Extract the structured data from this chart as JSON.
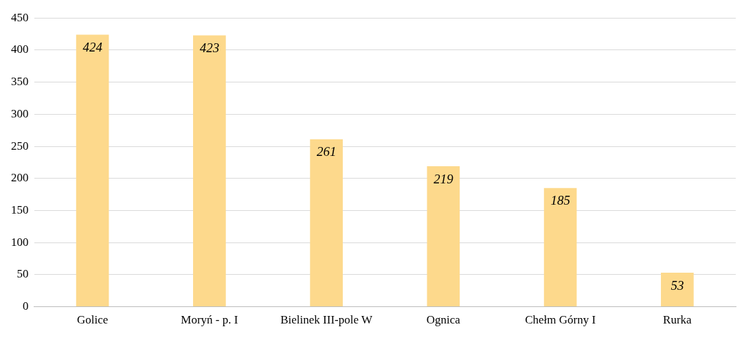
{
  "chart_data": {
    "type": "bar",
    "categories": [
      "Golice",
      "Moryń - p. I",
      "Bielinek III-pole W",
      "Ognica",
      "Chełm Górny I",
      "Rurka"
    ],
    "values": [
      424,
      423,
      261,
      219,
      185,
      53
    ],
    "color": "#fdd98c",
    "ylim": [
      0,
      450
    ],
    "yticks": [
      0,
      50,
      100,
      150,
      200,
      250,
      300,
      350,
      400,
      450
    ],
    "grid": "y",
    "data_labels": true,
    "legend": false
  }
}
